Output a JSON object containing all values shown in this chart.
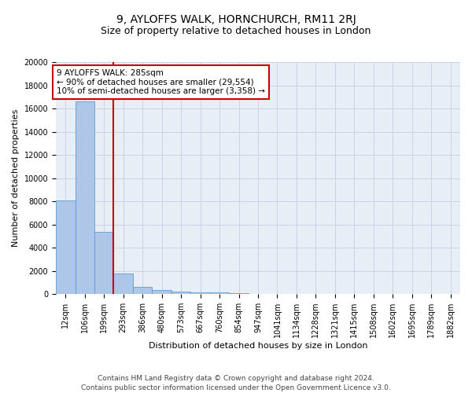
{
  "title": "9, AYLOFFS WALK, HORNCHURCH, RM11 2RJ",
  "subtitle": "Size of property relative to detached houses in London",
  "xlabel": "Distribution of detached houses by size in London",
  "ylabel": "Number of detached properties",
  "footer_line1": "Contains HM Land Registry data © Crown copyright and database right 2024.",
  "footer_line2": "Contains public sector information licensed under the Open Government Licence v3.0.",
  "bar_labels": [
    "12sqm",
    "106sqm",
    "199sqm",
    "293sqm",
    "386sqm",
    "480sqm",
    "573sqm",
    "667sqm",
    "760sqm",
    "854sqm",
    "947sqm",
    "1041sqm",
    "1134sqm",
    "1228sqm",
    "1321sqm",
    "1415sqm",
    "1508sqm",
    "1602sqm",
    "1695sqm",
    "1789sqm",
    "1882sqm"
  ],
  "bar_values": [
    8100,
    16600,
    5350,
    1750,
    650,
    320,
    200,
    160,
    130,
    100,
    0,
    0,
    0,
    0,
    0,
    0,
    0,
    0,
    0,
    0,
    0
  ],
  "bar_color": "#aec6e8",
  "bar_edge_color": "#5b9bd5",
  "vline_pos": 2.5,
  "vline_color": "#cc0000",
  "annotation_text": "9 AYLOFFS WALK: 285sqm\n← 90% of detached houses are smaller (29,554)\n10% of semi-detached houses are larger (3,358) →",
  "annotation_box_color": "#ffffff",
  "annotation_box_edge_color": "#cc0000",
  "ylim": [
    0,
    20000
  ],
  "yticks": [
    0,
    2000,
    4000,
    6000,
    8000,
    10000,
    12000,
    14000,
    16000,
    18000,
    20000
  ],
  "grid_color": "#c8d4e3",
  "bg_color": "#e8eef5",
  "title_fontsize": 10,
  "subtitle_fontsize": 9,
  "axis_label_fontsize": 8,
  "tick_fontsize": 7,
  "annotation_fontsize": 7.5,
  "footer_fontsize": 6.5
}
